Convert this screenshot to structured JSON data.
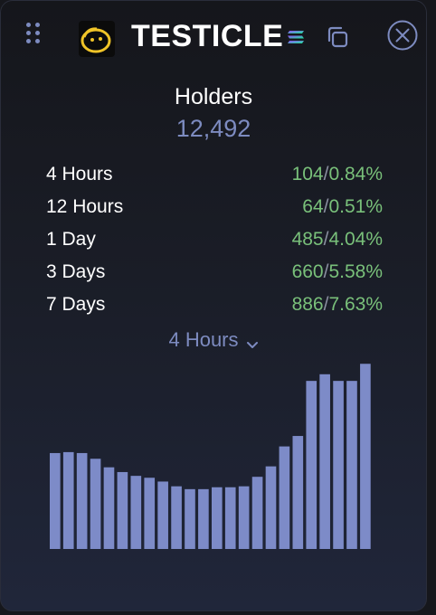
{
  "header": {
    "token_name": "TESTICLE",
    "icons": {
      "drag": "drag-handle-icon",
      "logo": "token-logo-icon",
      "chain": "solana-icon",
      "copy": "copy-icon",
      "close": "close-icon"
    }
  },
  "holders": {
    "title": "Holders",
    "count": "12,492"
  },
  "stats": [
    {
      "label": "4 Hours",
      "count": "104",
      "percent": "0.84%"
    },
    {
      "label": "12 Hours",
      "count": "64",
      "percent": "0.51%"
    },
    {
      "label": "1 Day",
      "count": "485",
      "percent": "4.04%"
    },
    {
      "label": "3 Days",
      "count": "660",
      "percent": "5.58%"
    },
    {
      "label": "7 Days",
      "count": "886",
      "percent": "7.63%"
    }
  ],
  "period_select": {
    "selected": "4 Hours"
  },
  "colors": {
    "accent": "#7d8bc0",
    "positive": "#79c07a",
    "bar": "#7d8bc8"
  },
  "chart_data": {
    "type": "bar",
    "values": [
      101,
      102,
      101,
      95,
      86,
      81,
      77,
      75,
      71,
      66,
      63,
      63,
      65,
      65,
      66,
      76,
      87,
      108,
      119,
      177,
      184,
      177,
      177,
      195
    ],
    "ylim": [
      0,
      200
    ]
  }
}
